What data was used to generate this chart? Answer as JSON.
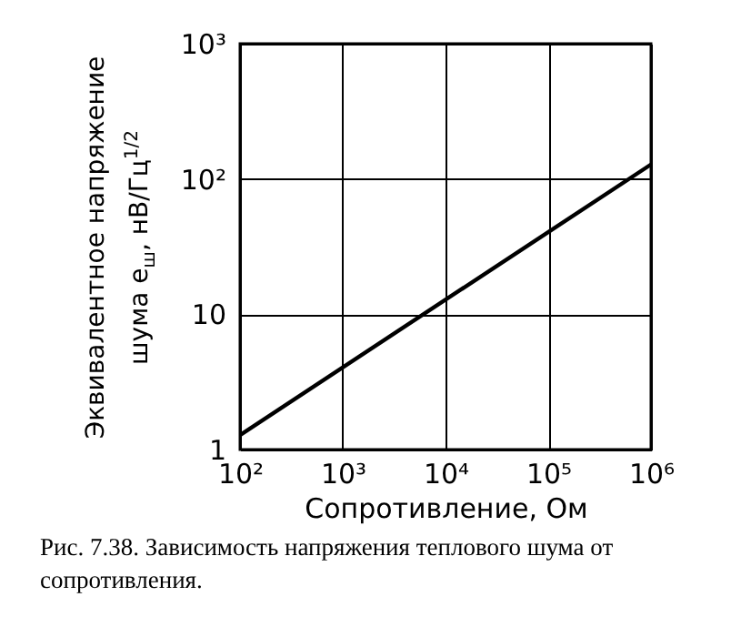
{
  "chart_data": {
    "type": "line",
    "xlabel": "Сопротивление, Ом",
    "ylabel": "Эквивалентное напряжение\nшума e$_{ш}$, нВ/Гц$^{1/2}$",
    "annotations": [
      "Рис. 7.38. Зависимость напряжения теплового шума от сопротивления."
    ],
    "x": [
      100,
      1000000
    ],
    "series": [
      {
        "color": "#000000",
        "values": [
          1.28,
          128
        ]
      }
    ],
    "log": "xy",
    "grid": true,
    "xlim": [
      100,
      1000000
    ],
    "xticks": [
      {
        "value": 100,
        "label": "10²"
      },
      {
        "value": 1000,
        "label": "10³"
      },
      {
        "value": 10000,
        "label": "10⁴"
      },
      {
        "value": 100000,
        "label": "10⁵"
      },
      {
        "value": 1000000,
        "label": "10⁶"
      }
    ],
    "ylim": [
      1,
      1000
    ],
    "yticks": [
      1,
      10,
      {
        "value": 100,
        "label": "10²"
      },
      {
        "value": 1000,
        "label": "10³"
      }
    ]
  }
}
